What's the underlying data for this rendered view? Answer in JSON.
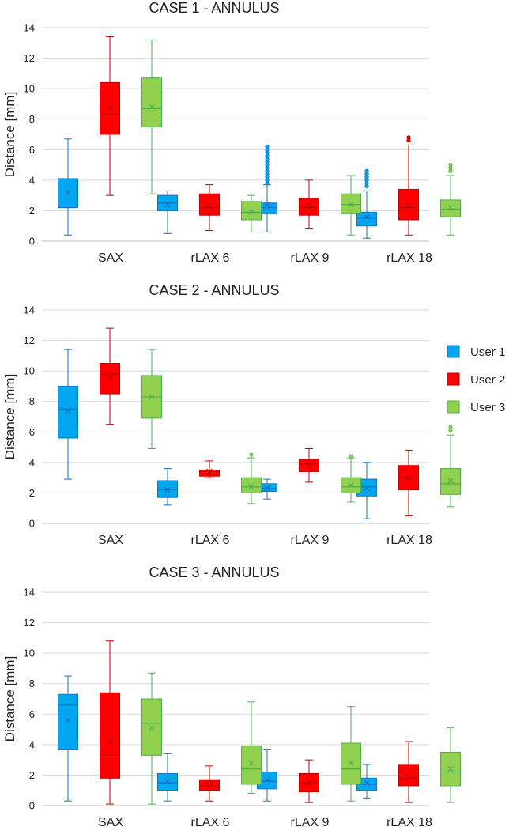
{
  "chart_data": [
    {
      "type": "box",
      "title": "CASE 1 - ANNULUS",
      "ylabel": "Distance [mm]",
      "xlabel": "",
      "ylim": [
        0,
        14
      ],
      "yticks": [
        0,
        2,
        4,
        6,
        8,
        10,
        12,
        14
      ],
      "grid": true,
      "categories": [
        "SAX",
        "rLAX 6",
        "rLAX 9",
        "rLAX 18"
      ],
      "series": [
        {
          "name": "User 1",
          "boxes": [
            {
              "min": 0.4,
              "q1": 2.2,
              "median": 2.2,
              "q3": 4.1,
              "max": 6.7,
              "mean": 3.2,
              "outliers": []
            },
            {
              "min": 0.5,
              "q1": 2.0,
              "median": 2.5,
              "q3": 3.0,
              "max": 3.3,
              "mean": 2.4,
              "outliers": []
            },
            {
              "min": 0.6,
              "q1": 1.8,
              "median": 2.2,
              "q3": 2.5,
              "max": 3.7,
              "mean": 2.4,
              "outliers": [
                3.8,
                4.0,
                4.2,
                4.4,
                4.6,
                4.8,
                5.0,
                5.2,
                5.4,
                5.6,
                5.8,
                6.0,
                6.2
              ]
            },
            {
              "min": 0.2,
              "q1": 1.0,
              "median": 1.5,
              "q3": 1.9,
              "max": 3.3,
              "mean": 1.6,
              "outliers": [
                3.6,
                3.8,
                4.0,
                4.2,
                4.4,
                4.6
              ]
            }
          ]
        },
        {
          "name": "User 2",
          "boxes": [
            {
              "min": 3.0,
              "q1": 7.0,
              "median": 8.3,
              "q3": 10.4,
              "max": 13.4,
              "mean": 8.7,
              "outliers": []
            },
            {
              "min": 0.7,
              "q1": 1.7,
              "median": 2.2,
              "q3": 3.1,
              "max": 3.7,
              "mean": 2.3,
              "outliers": []
            },
            {
              "min": 0.8,
              "q1": 1.7,
              "median": 2.2,
              "q3": 2.8,
              "max": 4.0,
              "mean": 2.4,
              "outliers": []
            },
            {
              "min": 0.4,
              "q1": 1.4,
              "median": 2.2,
              "q3": 3.4,
              "max": 6.3,
              "mean": 2.3,
              "outliers": [
                6.6,
                6.8
              ]
            }
          ]
        },
        {
          "name": "User 3",
          "boxes": [
            {
              "min": 3.1,
              "q1": 7.5,
              "median": 8.7,
              "q3": 10.7,
              "max": 13.2,
              "mean": 8.8,
              "outliers": []
            },
            {
              "min": 0.6,
              "q1": 1.4,
              "median": 1.9,
              "q3": 2.6,
              "max": 3.0,
              "mean": 1.9,
              "outliers": []
            },
            {
              "min": 0.4,
              "q1": 1.8,
              "median": 2.4,
              "q3": 3.1,
              "max": 4.3,
              "mean": 2.4,
              "outliers": []
            },
            {
              "min": 0.4,
              "q1": 1.6,
              "median": 2.1,
              "q3": 2.7,
              "max": 4.3,
              "mean": 2.2,
              "outliers": [
                4.6,
                4.8,
                5.0
              ]
            }
          ]
        }
      ]
    },
    {
      "type": "box",
      "title": "CASE 2 - ANNULUS",
      "ylabel": "Distance [mm]",
      "xlabel": "",
      "ylim": [
        0,
        14
      ],
      "yticks": [
        0,
        2,
        4,
        6,
        8,
        10,
        12,
        14
      ],
      "grid": true,
      "categories": [
        "SAX",
        "rLAX 6",
        "rLAX 9",
        "rLAX 18"
      ],
      "series": [
        {
          "name": "User 1",
          "boxes": [
            {
              "min": 2.9,
              "q1": 5.6,
              "median": 7.5,
              "q3": 9.0,
              "max": 11.4,
              "mean": 7.4,
              "outliers": []
            },
            {
              "min": 1.2,
              "q1": 1.7,
              "median": 2.2,
              "q3": 2.8,
              "max": 3.6,
              "mean": 2.2,
              "outliers": []
            },
            {
              "min": 1.6,
              "q1": 2.1,
              "median": 2.3,
              "q3": 2.6,
              "max": 2.9,
              "mean": 2.3,
              "outliers": []
            },
            {
              "min": 0.3,
              "q1": 1.8,
              "median": 2.4,
              "q3": 2.9,
              "max": 4.0,
              "mean": 2.3,
              "outliers": []
            }
          ]
        },
        {
          "name": "User 2",
          "boxes": [
            {
              "min": 6.5,
              "q1": 8.5,
              "median": 9.8,
              "q3": 10.5,
              "max": 12.8,
              "mean": 9.6,
              "outliers": []
            },
            {
              "min": 3.0,
              "q1": 3.1,
              "median": 3.4,
              "q3": 3.5,
              "max": 4.1,
              "mean": 3.4,
              "outliers": []
            },
            {
              "min": 2.7,
              "q1": 3.4,
              "median": 3.9,
              "q3": 4.2,
              "max": 4.9,
              "mean": 3.8,
              "outliers": []
            },
            {
              "min": 0.5,
              "q1": 2.2,
              "median": 3.0,
              "q3": 3.8,
              "max": 4.8,
              "mean": 3.0,
              "outliers": []
            }
          ]
        },
        {
          "name": "User 3",
          "boxes": [
            {
              "min": 4.9,
              "q1": 6.9,
              "median": 8.3,
              "q3": 9.7,
              "max": 11.4,
              "mean": 8.3,
              "outliers": []
            },
            {
              "min": 1.3,
              "q1": 2.0,
              "median": 2.4,
              "q3": 3.0,
              "max": 4.3,
              "mean": 2.4,
              "outliers": [
                4.5
              ]
            },
            {
              "min": 1.4,
              "q1": 2.0,
              "median": 2.4,
              "q3": 3.0,
              "max": 4.3,
              "mean": 2.5,
              "outliers": [
                4.4
              ]
            },
            {
              "min": 1.1,
              "q1": 1.9,
              "median": 2.6,
              "q3": 3.6,
              "max": 5.8,
              "mean": 2.8,
              "outliers": [
                6.1,
                6.3
              ]
            }
          ]
        }
      ]
    },
    {
      "type": "box",
      "title": "CASE 3 - ANNULUS",
      "ylabel": "Distance [mm]",
      "xlabel": "",
      "ylim": [
        0,
        14
      ],
      "yticks": [
        0,
        2,
        4,
        6,
        8,
        10,
        12,
        14
      ],
      "grid": true,
      "categories": [
        "SAX",
        "rLAX 6",
        "rLAX 9",
        "rLAX 18"
      ],
      "series": [
        {
          "name": "User 1",
          "boxes": [
            {
              "min": 0.3,
              "q1": 3.7,
              "median": 6.6,
              "q3": 7.3,
              "max": 8.5,
              "mean": 5.6,
              "outliers": []
            },
            {
              "min": 0.3,
              "q1": 1.0,
              "median": 1.5,
              "q3": 2.1,
              "max": 3.4,
              "mean": 1.6,
              "outliers": []
            },
            {
              "min": 0.3,
              "q1": 1.1,
              "median": 1.6,
              "q3": 2.2,
              "max": 3.7,
              "mean": 1.7,
              "outliers": []
            },
            {
              "min": 0.5,
              "q1": 1.0,
              "median": 1.4,
              "q3": 1.8,
              "max": 2.7,
              "mean": 1.5,
              "outliers": []
            }
          ]
        },
        {
          "name": "User 2",
          "boxes": [
            {
              "min": 0.1,
              "q1": 1.8,
              "median": 3.3,
              "q3": 7.4,
              "max": 10.8,
              "mean": 4.2,
              "outliers": []
            },
            {
              "min": 0.3,
              "q1": 1.0,
              "median": 1.3,
              "q3": 1.7,
              "max": 2.6,
              "mean": 1.4,
              "outliers": []
            },
            {
              "min": 0.2,
              "q1": 0.9,
              "median": 1.5,
              "q3": 2.1,
              "max": 3.0,
              "mean": 1.5,
              "outliers": []
            },
            {
              "min": 0.2,
              "q1": 1.3,
              "median": 1.8,
              "q3": 2.7,
              "max": 4.2,
              "mean": 1.9,
              "outliers": []
            }
          ]
        },
        {
          "name": "User 3",
          "boxes": [
            {
              "min": 0.1,
              "q1": 3.3,
              "median": 5.4,
              "q3": 7.0,
              "max": 8.7,
              "mean": 5.1,
              "outliers": []
            },
            {
              "min": 0.8,
              "q1": 1.4,
              "median": 2.4,
              "q3": 3.9,
              "max": 6.8,
              "mean": 2.8,
              "outliers": []
            },
            {
              "min": 0.3,
              "q1": 1.4,
              "median": 2.4,
              "q3": 4.1,
              "max": 6.5,
              "mean": 2.8,
              "outliers": []
            },
            {
              "min": 0.2,
              "q1": 1.3,
              "median": 2.2,
              "q3": 3.5,
              "max": 5.1,
              "mean": 2.4,
              "outliers": []
            }
          ]
        }
      ]
    }
  ],
  "legend": {
    "position": "right",
    "items": [
      {
        "label": "User 1",
        "fill": "#00a6ef",
        "stroke": "#1a70c0"
      },
      {
        "label": "User 2",
        "fill": "#ff0000",
        "stroke": "#c00000"
      },
      {
        "label": "User 3",
        "fill": "#92d050",
        "stroke": "#4caf50"
      }
    ]
  },
  "colors": {
    "grid": "#d9d9d9",
    "axis": "#bfbfbf",
    "text": "#222222"
  }
}
